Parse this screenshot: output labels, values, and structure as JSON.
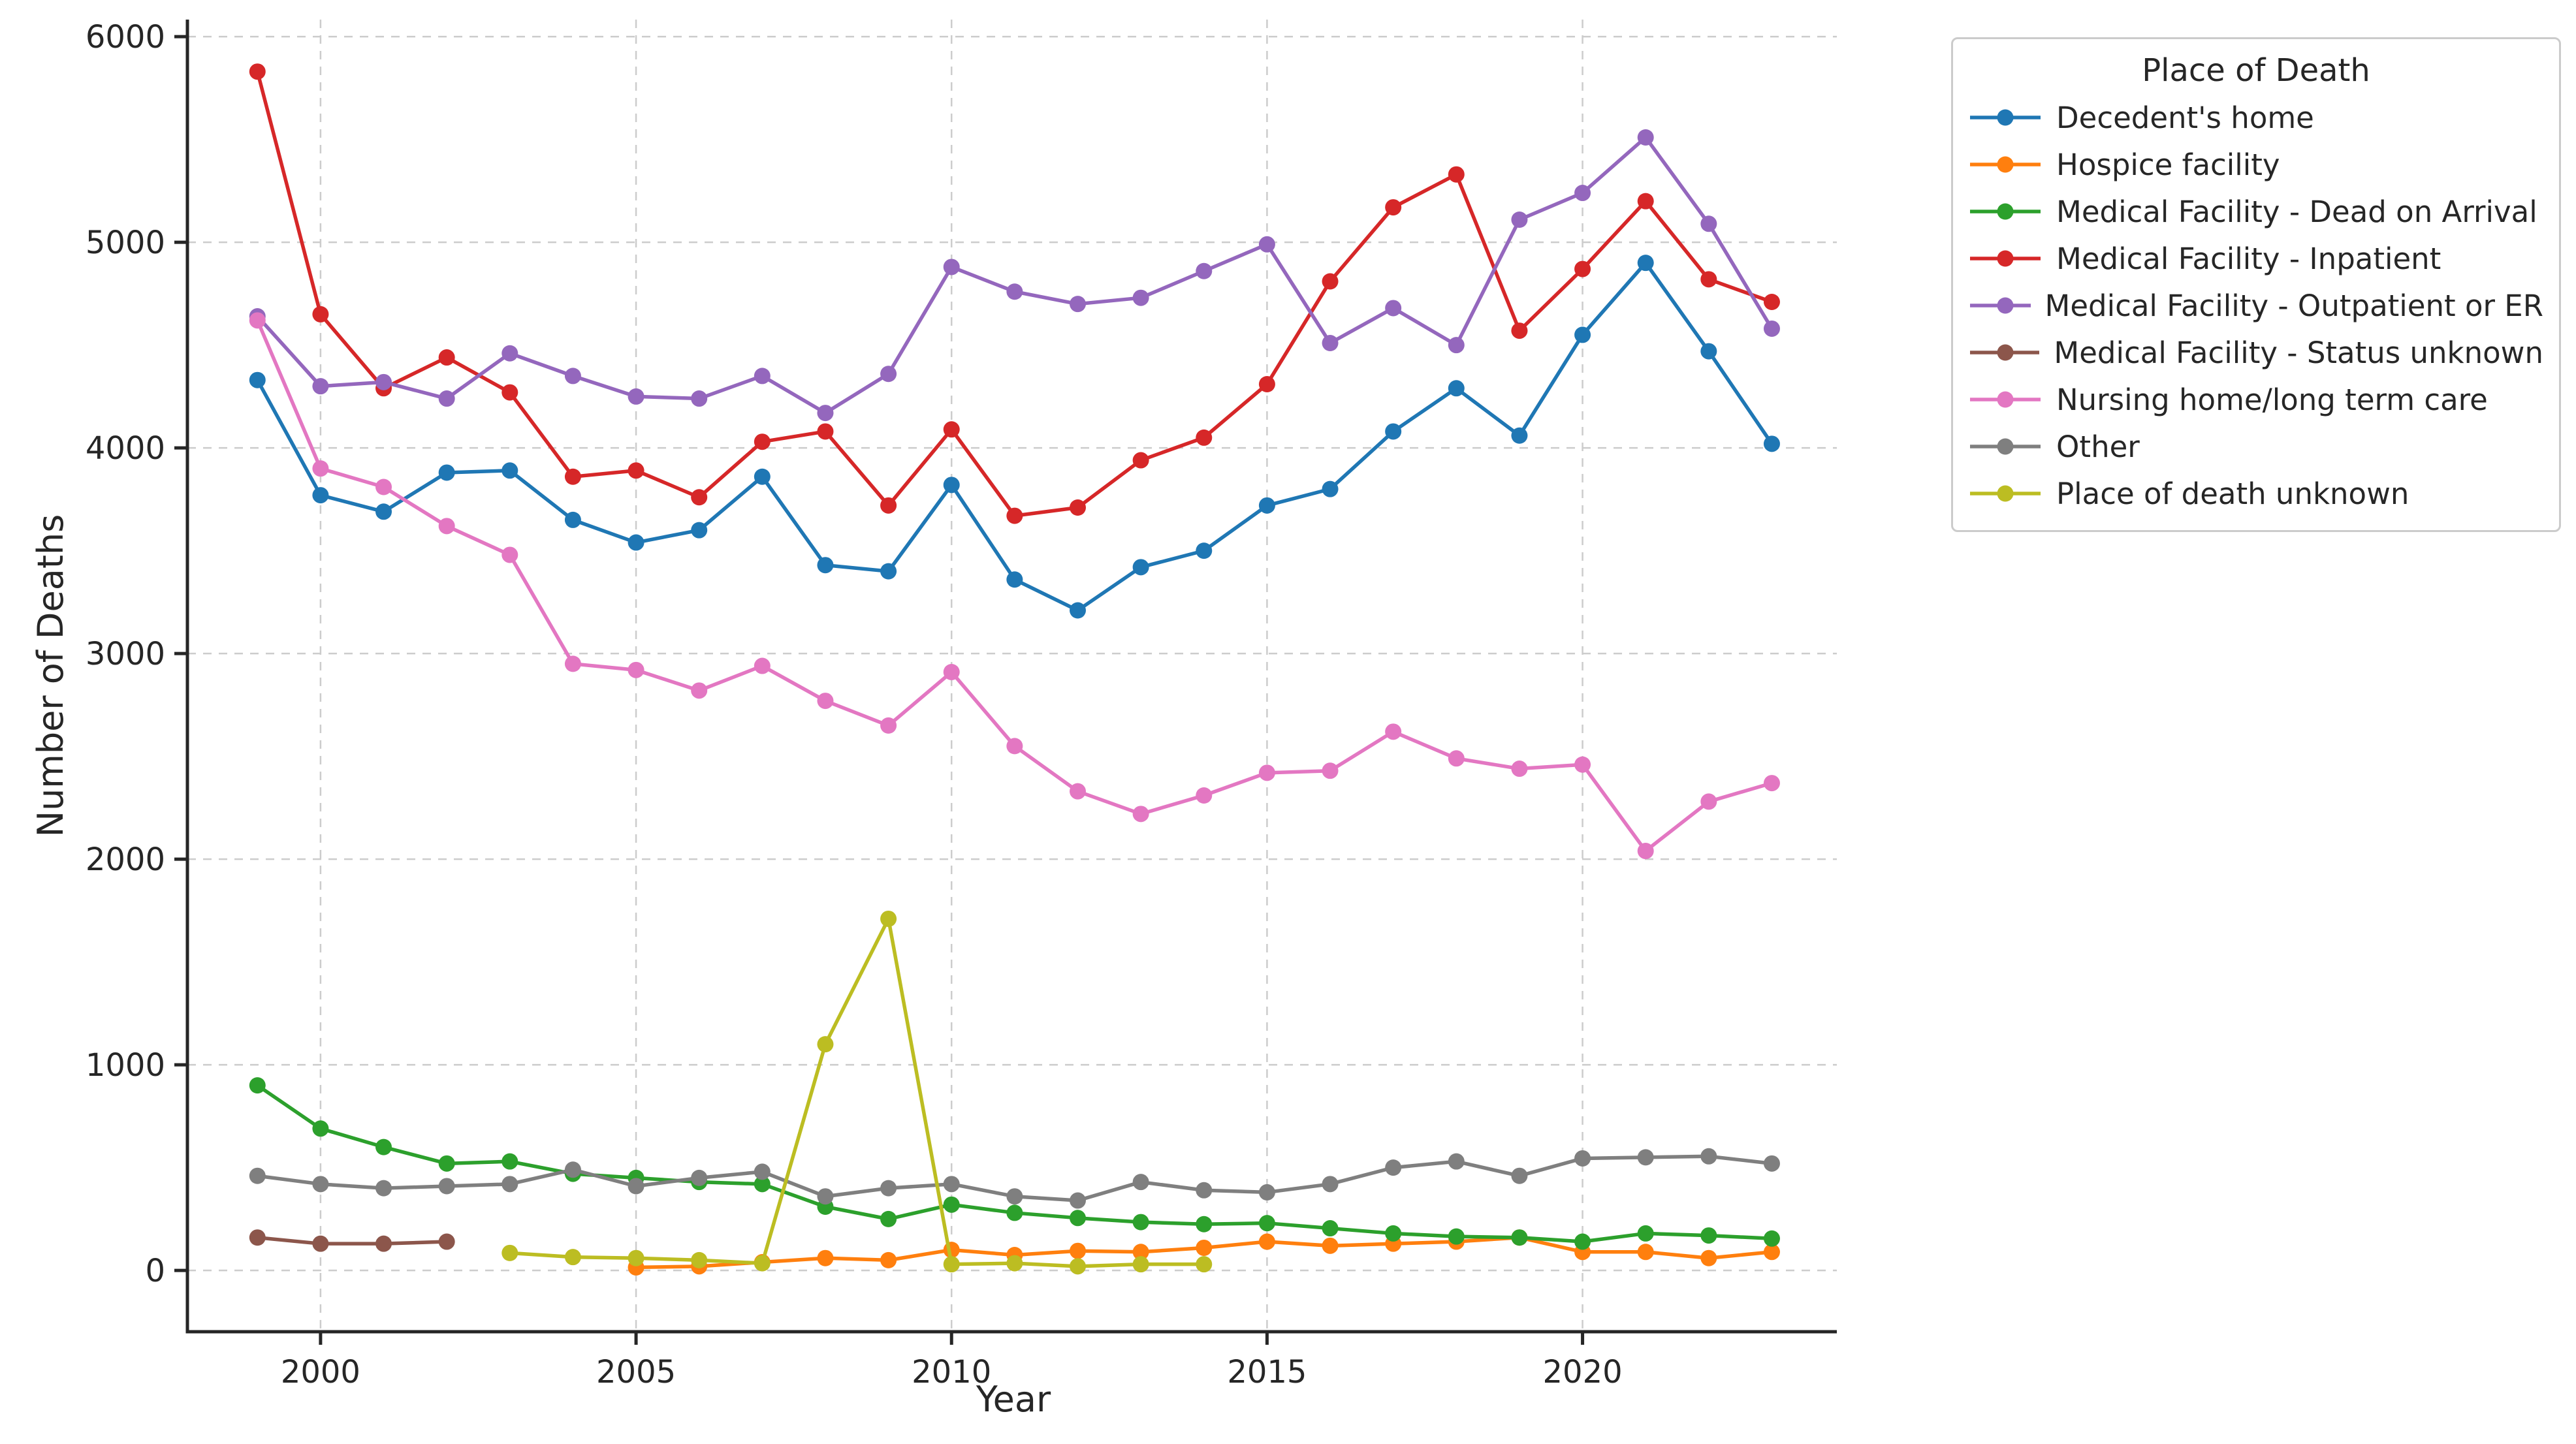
{
  "figure": {
    "background": "#ffffff",
    "text_color": "#262626",
    "grid_color": "#cccccc",
    "spine_color": "#262626"
  },
  "legend": {
    "title": "Place of Death",
    "position": "outside-upper-right"
  },
  "chart_data": {
    "type": "line",
    "title": "",
    "xlabel": "Year",
    "ylabel": "Number of Deaths",
    "x_ticks": [
      2000,
      2005,
      2010,
      2015,
      2020
    ],
    "y_ticks": [
      0,
      1000,
      2000,
      3000,
      4000,
      5000,
      6000
    ],
    "grid": "dashed",
    "marker": "circle",
    "layout": {
      "plot_left": 287,
      "plot_top": 30,
      "plot_right": 2813,
      "plot_bottom": 2040,
      "xlim": [
        1997.89,
        2024.03
      ],
      "ylim": [
        -298,
        6083
      ]
    },
    "series": [
      {
        "name": "Decedent's home",
        "color": "#1f77b4",
        "x": [
          1999,
          2000,
          2001,
          2002,
          2003,
          2004,
          2005,
          2006,
          2007,
          2008,
          2009,
          2010,
          2011,
          2012,
          2013,
          2014,
          2015,
          2016,
          2017,
          2018,
          2019,
          2020,
          2021,
          2022,
          2023
        ],
        "y": [
          4330,
          3770,
          3690,
          3880,
          3890,
          3650,
          3540,
          3600,
          3860,
          3430,
          3400,
          3820,
          3360,
          3210,
          3420,
          3500,
          3720,
          3800,
          4080,
          4290,
          4060,
          4550,
          4900,
          4470,
          4020
        ]
      },
      {
        "name": "Hospice facility",
        "color": "#ff7f0e",
        "x": [
          2005,
          2006,
          2007,
          2008,
          2009,
          2010,
          2011,
          2012,
          2013,
          2014,
          2015,
          2016,
          2017,
          2018,
          2019,
          2020,
          2021,
          2022,
          2023
        ],
        "y": [
          15,
          20,
          40,
          60,
          50,
          100,
          75,
          95,
          90,
          110,
          140,
          120,
          130,
          140,
          160,
          90,
          90,
          60,
          90
        ]
      },
      {
        "name": "Medical Facility - Dead on Arrival",
        "color": "#2ca02c",
        "x": [
          1999,
          2000,
          2001,
          2002,
          2003,
          2004,
          2005,
          2006,
          2007,
          2008,
          2009,
          2010,
          2011,
          2012,
          2013,
          2014,
          2015,
          2016,
          2017,
          2018,
          2019,
          2020,
          2021,
          2022,
          2023
        ],
        "y": [
          900,
          690,
          600,
          520,
          530,
          470,
          450,
          430,
          420,
          310,
          250,
          320,
          280,
          255,
          235,
          225,
          230,
          205,
          180,
          165,
          160,
          140,
          180,
          170,
          155
        ]
      },
      {
        "name": "Medical Facility - Inpatient",
        "color": "#d62728",
        "x": [
          1999,
          2000,
          2001,
          2002,
          2003,
          2004,
          2005,
          2006,
          2007,
          2008,
          2009,
          2010,
          2011,
          2012,
          2013,
          2014,
          2015,
          2016,
          2017,
          2018,
          2019,
          2020,
          2021,
          2022,
          2023
        ],
        "y": [
          5830,
          4650,
          4290,
          4440,
          4270,
          3860,
          3890,
          3760,
          4030,
          4080,
          3720,
          4090,
          3670,
          3710,
          3940,
          4050,
          4310,
          4810,
          5170,
          5330,
          4570,
          4870,
          5200,
          4820,
          4710
        ]
      },
      {
        "name": "Medical Facility - Outpatient or ER",
        "color": "#9467bd",
        "x": [
          1999,
          2000,
          2001,
          2002,
          2003,
          2004,
          2005,
          2006,
          2007,
          2008,
          2009,
          2010,
          2011,
          2012,
          2013,
          2014,
          2015,
          2016,
          2017,
          2018,
          2019,
          2020,
          2021,
          2022,
          2023
        ],
        "y": [
          4640,
          4300,
          4320,
          4240,
          4460,
          4350,
          4250,
          4240,
          4350,
          4170,
          4360,
          4880,
          4760,
          4700,
          4730,
          4860,
          4990,
          4510,
          4680,
          4500,
          5110,
          5240,
          5510,
          5090,
          4580
        ]
      },
      {
        "name": "Medical Facility - Status unknown",
        "color": "#8c564b",
        "x": [
          1999,
          2000,
          2001,
          2002
        ],
        "y": [
          160,
          130,
          130,
          140
        ]
      },
      {
        "name": "Nursing home/long term care",
        "color": "#e377c2",
        "x": [
          1999,
          2000,
          2001,
          2002,
          2003,
          2004,
          2005,
          2006,
          2007,
          2008,
          2009,
          2010,
          2011,
          2012,
          2013,
          2014,
          2015,
          2016,
          2017,
          2018,
          2019,
          2020,
          2021,
          2022,
          2023
        ],
        "y": [
          4620,
          3900,
          3810,
          3620,
          3480,
          2950,
          2920,
          2820,
          2940,
          2770,
          2650,
          2910,
          2550,
          2330,
          2220,
          2310,
          2420,
          2430,
          2620,
          2490,
          2440,
          2460,
          2040,
          2280,
          2370
        ]
      },
      {
        "name": "Other",
        "color": "#7f7f7f",
        "x": [
          1999,
          2000,
          2001,
          2002,
          2003,
          2004,
          2005,
          2006,
          2007,
          2008,
          2009,
          2010,
          2011,
          2012,
          2013,
          2014,
          2015,
          2016,
          2017,
          2018,
          2019,
          2020,
          2021,
          2022,
          2023
        ],
        "y": [
          460,
          420,
          400,
          410,
          420,
          490,
          410,
          450,
          480,
          360,
          400,
          420,
          360,
          340,
          430,
          390,
          380,
          420,
          500,
          530,
          460,
          545,
          550,
          555,
          520
        ]
      },
      {
        "name": "Place of death unknown",
        "color": "#bcbd22",
        "x": [
          2003,
          2004,
          2005,
          2006,
          2007,
          2008,
          2009,
          2010,
          2011,
          2012,
          2013,
          2014
        ],
        "y": [
          85,
          65,
          60,
          50,
          35,
          1100,
          1710,
          30,
          35,
          20,
          30,
          30
        ]
      }
    ]
  }
}
